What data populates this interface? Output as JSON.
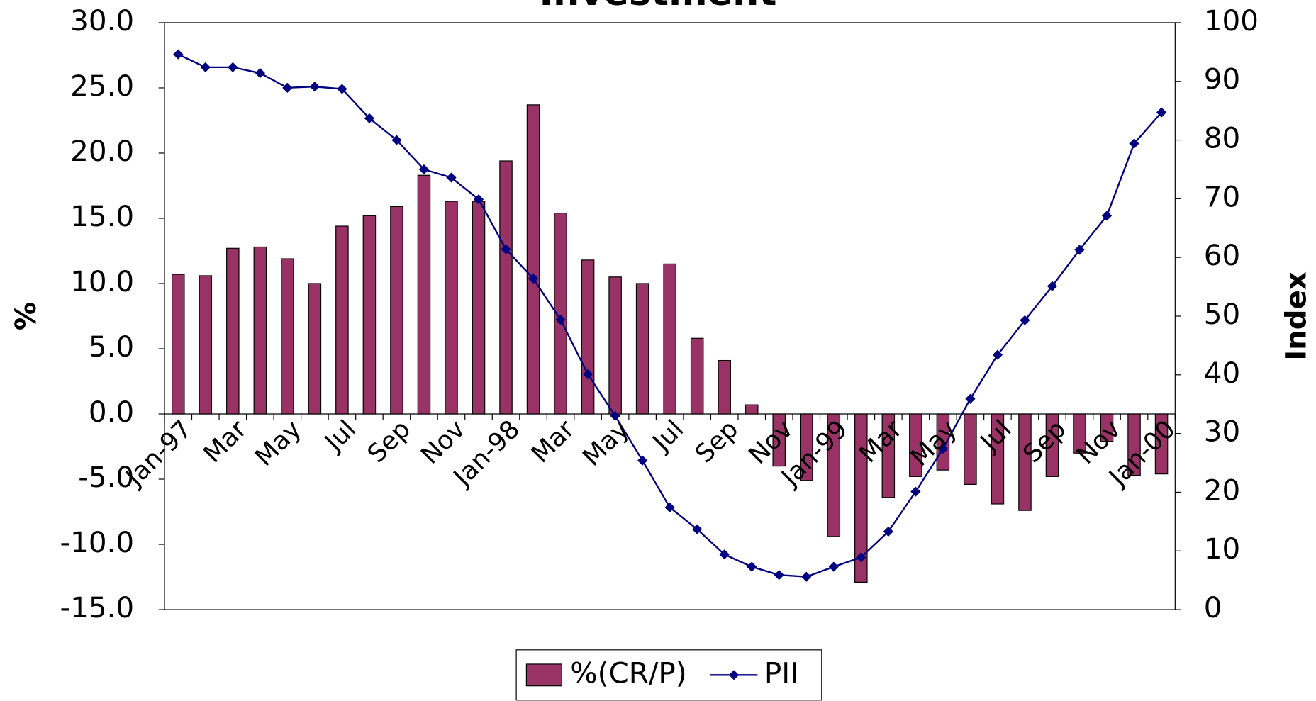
{
  "chart_data": {
    "type": "bar_line",
    "title": "Investment",
    "ylabel": "%",
    "y2label": "Index",
    "categories": [
      "Jan-97",
      null,
      "Mar",
      null,
      "May",
      null,
      "Jul",
      null,
      "Sep",
      null,
      "Nov",
      null,
      "Jan-98",
      null,
      "Mar",
      null,
      "May",
      null,
      "Jul",
      null,
      "Sep",
      null,
      "Nov",
      null,
      "Jan-99",
      null,
      "Mar",
      null,
      "May",
      null,
      "Jul",
      null,
      "Sep",
      null,
      "Nov",
      null,
      "Jan-00"
    ],
    "series": [
      {
        "name": "%(CR/P)",
        "type": "bar",
        "color": "#993366",
        "values": [
          10.7,
          10.6,
          12.7,
          12.8,
          11.9,
          10.0,
          14.4,
          15.2,
          15.9,
          18.3,
          16.3,
          16.3,
          19.4,
          23.7,
          15.4,
          11.8,
          10.5,
          10.0,
          11.5,
          5.8,
          4.1,
          0.7,
          -4.0,
          -5.1,
          -9.4,
          -12.9,
          -6.4,
          -4.8,
          -4.3,
          -5.4,
          -6.9,
          -7.4,
          -4.8,
          -3.0,
          -2.1,
          -4.7,
          -4.6
        ]
      },
      {
        "name": "PII",
        "type": "line",
        "axis": "y2",
        "color": "#000080",
        "values": [
          94.6,
          92.4,
          92.4,
          91.4,
          88.9,
          89.1,
          88.7,
          83.7,
          80.0,
          75.0,
          73.6,
          69.9,
          61.4,
          56.4,
          49.4,
          40.1,
          33.0,
          25.4,
          17.4,
          13.7,
          9.4,
          7.3,
          5.9,
          5.6,
          7.3,
          8.9,
          13.3,
          20.1,
          27.4,
          35.9,
          43.4,
          49.3,
          55.1,
          61.3,
          67.1,
          79.4,
          84.7
        ]
      }
    ],
    "ylim": [
      -15,
      30
    ],
    "yticks": [
      {
        "value": -15,
        "label": "-15.0"
      },
      {
        "value": -10,
        "label": "-10.0"
      },
      {
        "value": -5,
        "label": "-5.0"
      },
      {
        "value": 0,
        "label": "0.0"
      },
      {
        "value": 5,
        "label": "5.0"
      },
      {
        "value": 10,
        "label": "10.0"
      },
      {
        "value": 15,
        "label": "15.0"
      },
      {
        "value": 20,
        "label": "20.0"
      },
      {
        "value": 25,
        "label": "25.0"
      },
      {
        "value": 30,
        "label": "30.0"
      }
    ],
    "y2lim": [
      0,
      100
    ],
    "y2ticks": [
      0,
      10,
      20,
      30,
      40,
      50,
      60,
      70,
      80,
      90,
      100
    ],
    "legend": "bottom"
  }
}
